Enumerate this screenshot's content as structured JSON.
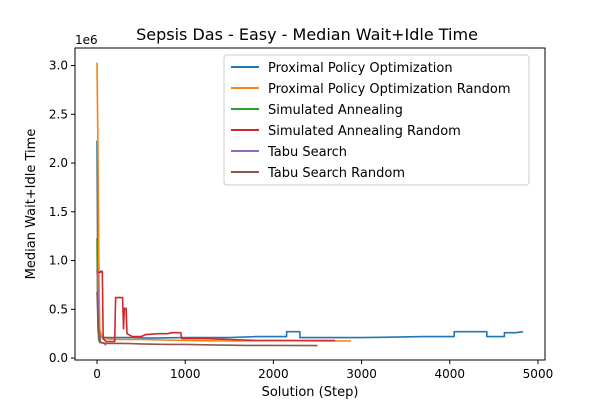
{
  "chart_data": {
    "type": "line",
    "title": "Sepsis Das - Easy - Median Wait+Idle Time",
    "xlabel": "Solution (Step)",
    "ylabel": "Median Wait+Idle Time",
    "y_offset_label": "1e6",
    "xlim": [
      -250,
      5080
    ],
    "ylim": [
      -20000,
      3180000
    ],
    "x_ticks": [
      0,
      1000,
      2000,
      3000,
      4000,
      5000
    ],
    "x_tick_labels": [
      "0",
      "1000",
      "2000",
      "3000",
      "4000",
      "5000"
    ],
    "y_ticks": [
      0,
      500000,
      1000000,
      1500000,
      2000000,
      2500000,
      3000000
    ],
    "y_tick_labels": [
      "0.0",
      "0.5",
      "1.0",
      "1.5",
      "2.0",
      "2.5",
      "3.0"
    ],
    "grid": false,
    "legend_position": "top-right",
    "series": [
      {
        "name": "Proximal Policy Optimization",
        "color": "#1f77b4",
        "points": [
          [
            0,
            2230000
          ],
          [
            10,
            600000
          ],
          [
            20,
            300000
          ],
          [
            40,
            220000
          ],
          [
            100,
            210000
          ],
          [
            400,
            210000
          ],
          [
            600,
            205000
          ],
          [
            1000,
            210000
          ],
          [
            1500,
            210000
          ],
          [
            1800,
            220000
          ],
          [
            2150,
            220000
          ],
          [
            2150,
            270000
          ],
          [
            2300,
            270000
          ],
          [
            2300,
            210000
          ],
          [
            3000,
            210000
          ],
          [
            3700,
            220000
          ],
          [
            4050,
            220000
          ],
          [
            4050,
            270000
          ],
          [
            4420,
            270000
          ],
          [
            4420,
            220000
          ],
          [
            4620,
            220000
          ],
          [
            4620,
            260000
          ],
          [
            4750,
            260000
          ],
          [
            4830,
            270000
          ]
        ]
      },
      {
        "name": "Proximal Policy Optimization Random",
        "color": "#ff7f0e",
        "points": [
          [
            0,
            3030000
          ],
          [
            10,
            2200000
          ],
          [
            20,
            1000000
          ],
          [
            30,
            300000
          ],
          [
            60,
            200000
          ],
          [
            200,
            190000
          ],
          [
            500,
            190000
          ],
          [
            1000,
            180000
          ],
          [
            1500,
            175000
          ],
          [
            2000,
            180000
          ],
          [
            2500,
            175000
          ],
          [
            2880,
            175000
          ]
        ]
      },
      {
        "name": "Simulated Annealing",
        "color": "#2ca02c",
        "points": [
          [
            0,
            1230000
          ],
          [
            5,
            600000
          ],
          [
            10,
            300000
          ],
          [
            20,
            180000
          ],
          [
            40,
            160000
          ]
        ]
      },
      {
        "name": "Simulated Annealing Random",
        "color": "#d62728",
        "points": [
          [
            0,
            880000
          ],
          [
            40,
            880000
          ],
          [
            40,
            890000
          ],
          [
            60,
            890000
          ],
          [
            70,
            200000
          ],
          [
            100,
            170000
          ],
          [
            200,
            170000
          ],
          [
            210,
            620000
          ],
          [
            290,
            620000
          ],
          [
            300,
            300000
          ],
          [
            310,
            510000
          ],
          [
            330,
            510000
          ],
          [
            340,
            250000
          ],
          [
            400,
            220000
          ],
          [
            500,
            220000
          ],
          [
            550,
            240000
          ],
          [
            700,
            250000
          ],
          [
            800,
            250000
          ],
          [
            850,
            260000
          ],
          [
            950,
            260000
          ],
          [
            960,
            200000
          ],
          [
            1200,
            200000
          ],
          [
            1500,
            190000
          ],
          [
            1800,
            180000
          ],
          [
            2200,
            180000
          ],
          [
            2700,
            180000
          ]
        ]
      },
      {
        "name": "Tabu Search",
        "color": "#9467bd",
        "points": [
          [
            0,
            900000
          ],
          [
            10,
            700000
          ],
          [
            20,
            300000
          ],
          [
            40,
            160000
          ],
          [
            80,
            150000
          ],
          [
            100,
            130000
          ]
        ]
      },
      {
        "name": "Tabu Search Random",
        "color": "#8c564b",
        "points": [
          [
            0,
            680000
          ],
          [
            15,
            300000
          ],
          [
            30,
            160000
          ],
          [
            100,
            150000
          ],
          [
            300,
            150000
          ],
          [
            500,
            145000
          ],
          [
            800,
            140000
          ],
          [
            1000,
            140000
          ],
          [
            1300,
            135000
          ],
          [
            1700,
            130000
          ],
          [
            2000,
            130000
          ],
          [
            2500,
            128000
          ]
        ]
      }
    ]
  }
}
